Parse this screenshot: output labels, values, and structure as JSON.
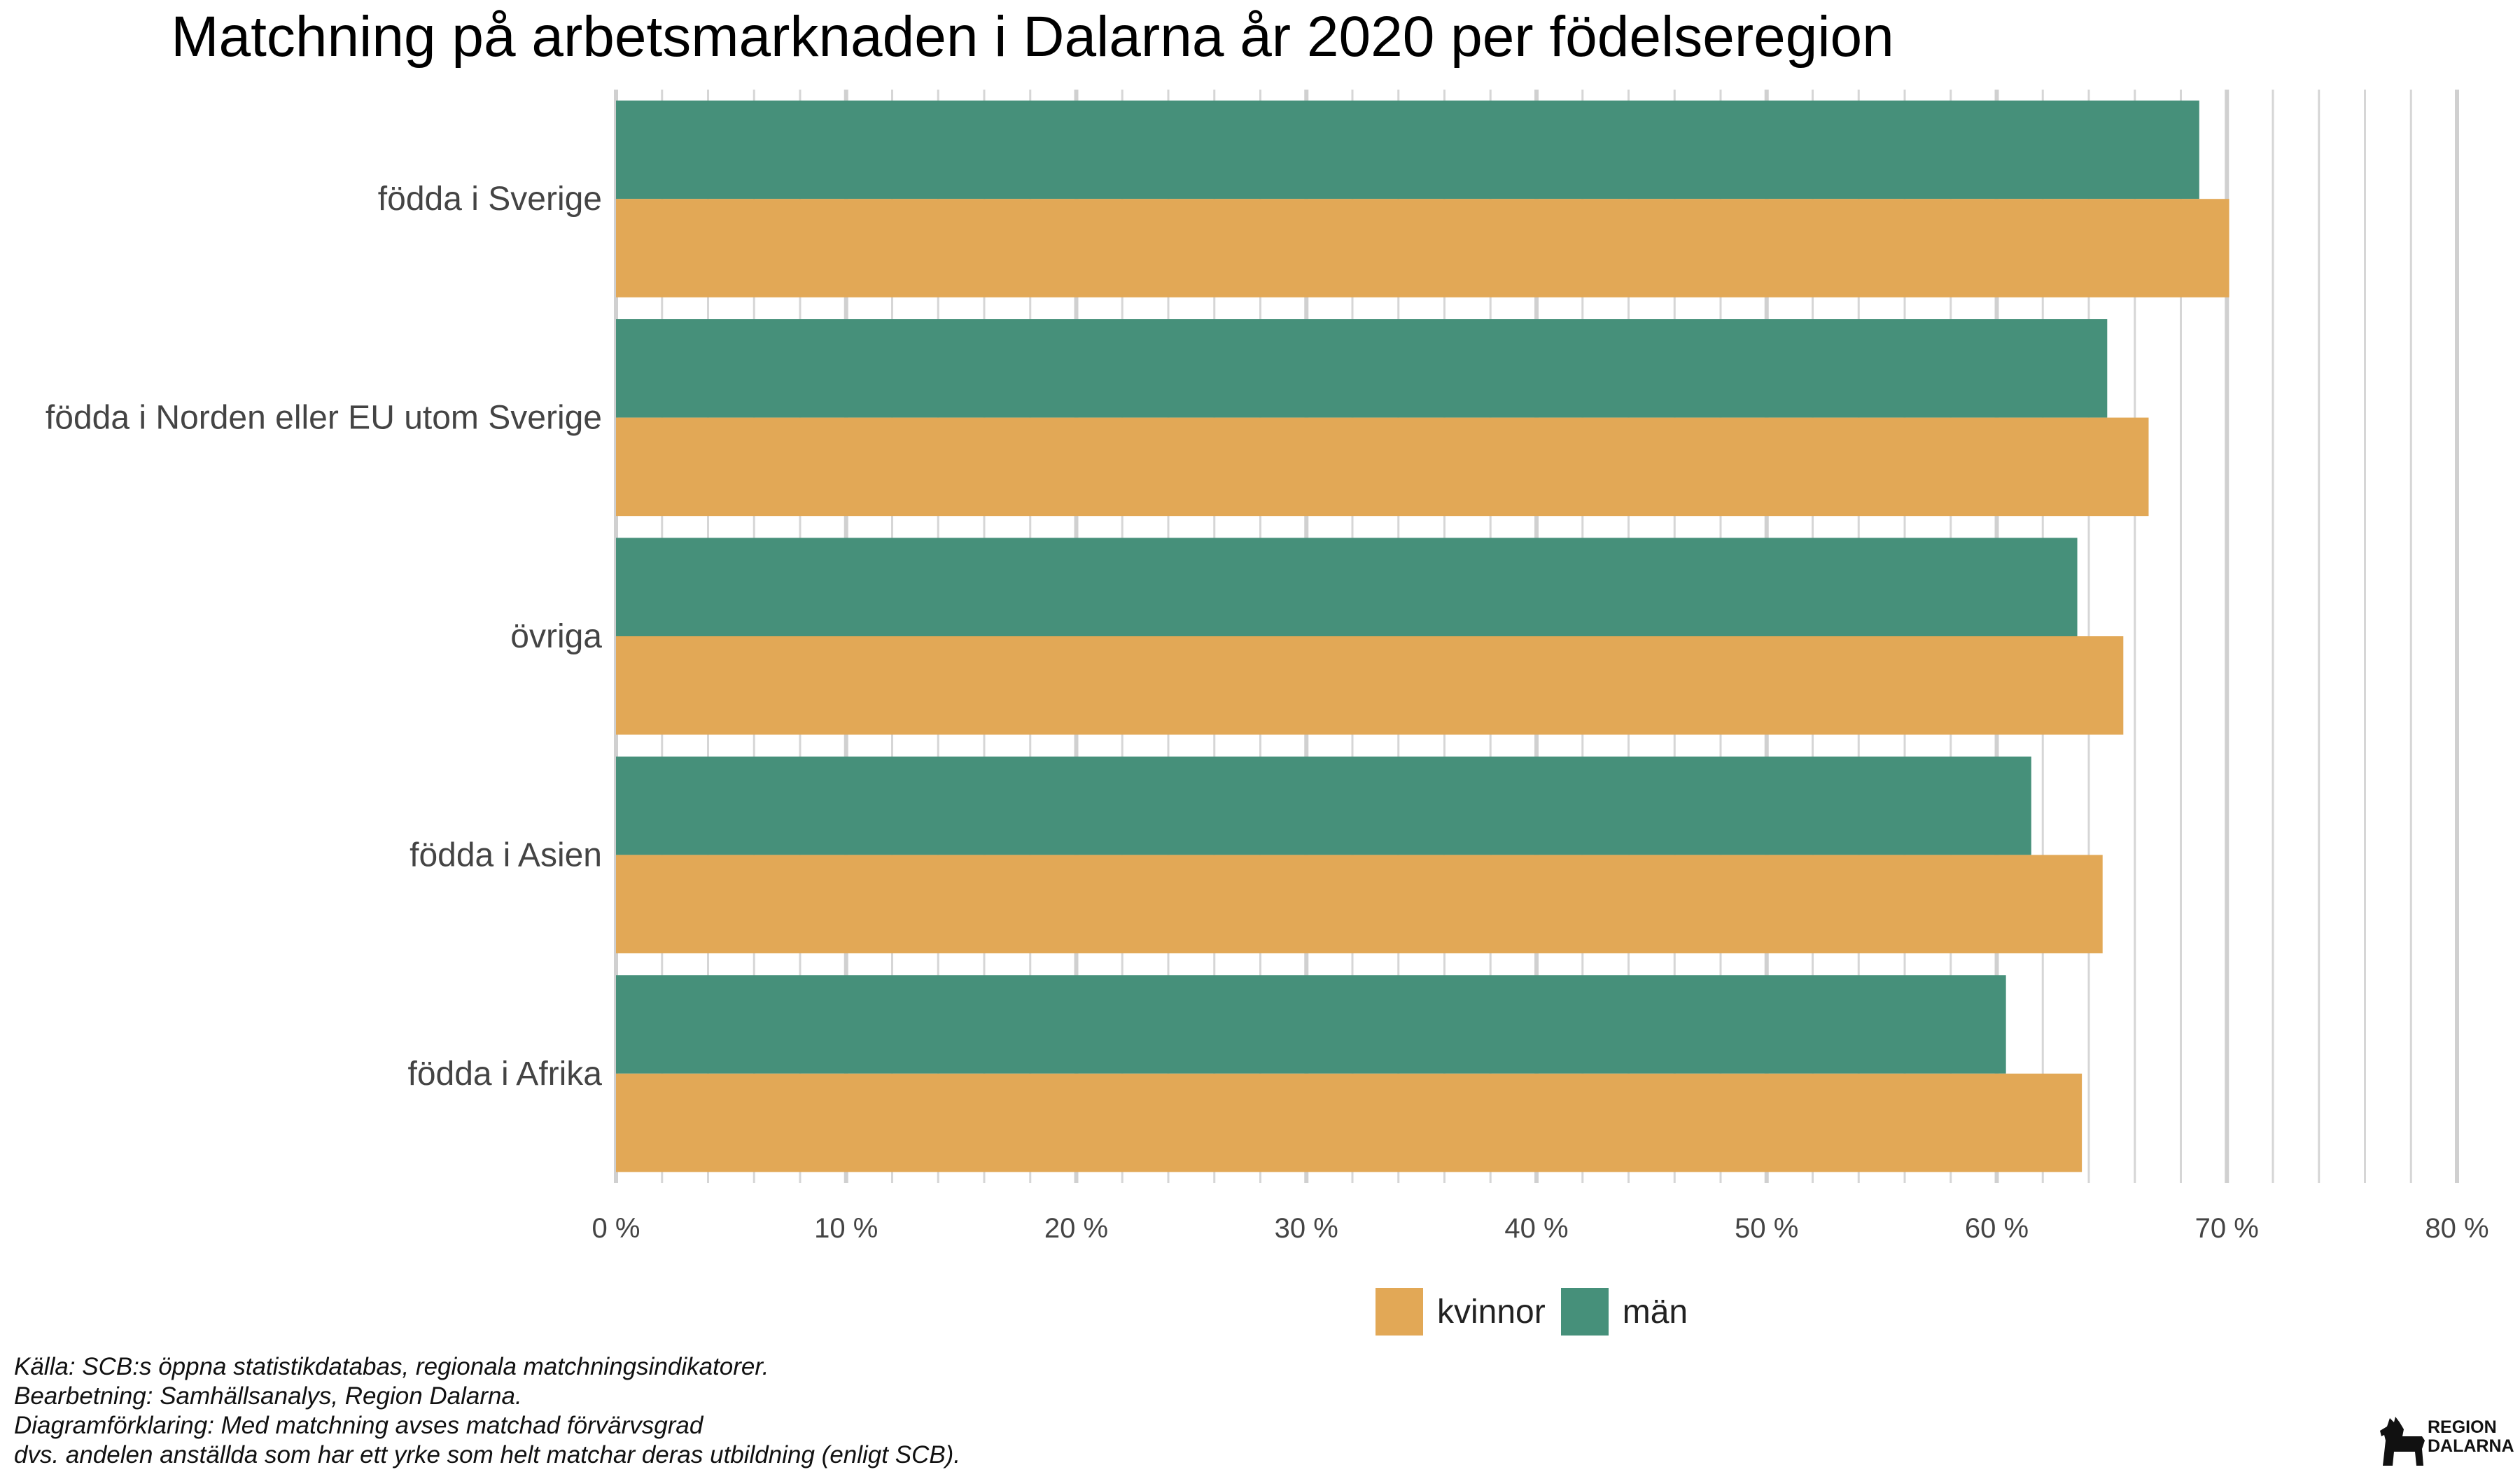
{
  "chart_data": {
    "type": "bar",
    "orientation": "horizontal",
    "title": "Matchning på arbetsmarknaden i Dalarna år 2020 per födelseregion",
    "categories": [
      "födda i Sverige",
      "födda i Norden eller EU utom Sverige",
      "övriga",
      "födda i Asien",
      "födda i Afrika"
    ],
    "series": [
      {
        "name": "män",
        "color": "#46907a",
        "values": [
          68.8,
          64.8,
          63.5,
          61.5,
          60.4
        ]
      },
      {
        "name": "kvinnor",
        "color": "#e2a856",
        "values": [
          70.1,
          66.6,
          65.5,
          64.6,
          63.7
        ]
      }
    ],
    "xlim": [
      0,
      80
    ],
    "xticks": [
      "0 %",
      "10 %",
      "20 %",
      "30 %",
      "40 %",
      "50 %",
      "60 %",
      "70 %",
      "80 %"
    ],
    "grid": true,
    "legend_position": "bottom"
  },
  "legend": [
    {
      "label": "kvinnor",
      "color": "#e2a856"
    },
    {
      "label": "män",
      "color": "#46907a"
    }
  ],
  "footer": [
    "Källa: SCB:s öppna statistikdatabas, regionala matchningsindikatorer.",
    "Bearbetning: Samhällsanalys, Region Dalarna.",
    "Diagramförklaring: Med matchning avses matchad förvärvsgrad",
    "dvs. andelen anställda som har ett yrke som helt matchar deras utbildning (enligt SCB)."
  ],
  "logo": {
    "line1": "REGION",
    "line2": "DALARNA"
  }
}
